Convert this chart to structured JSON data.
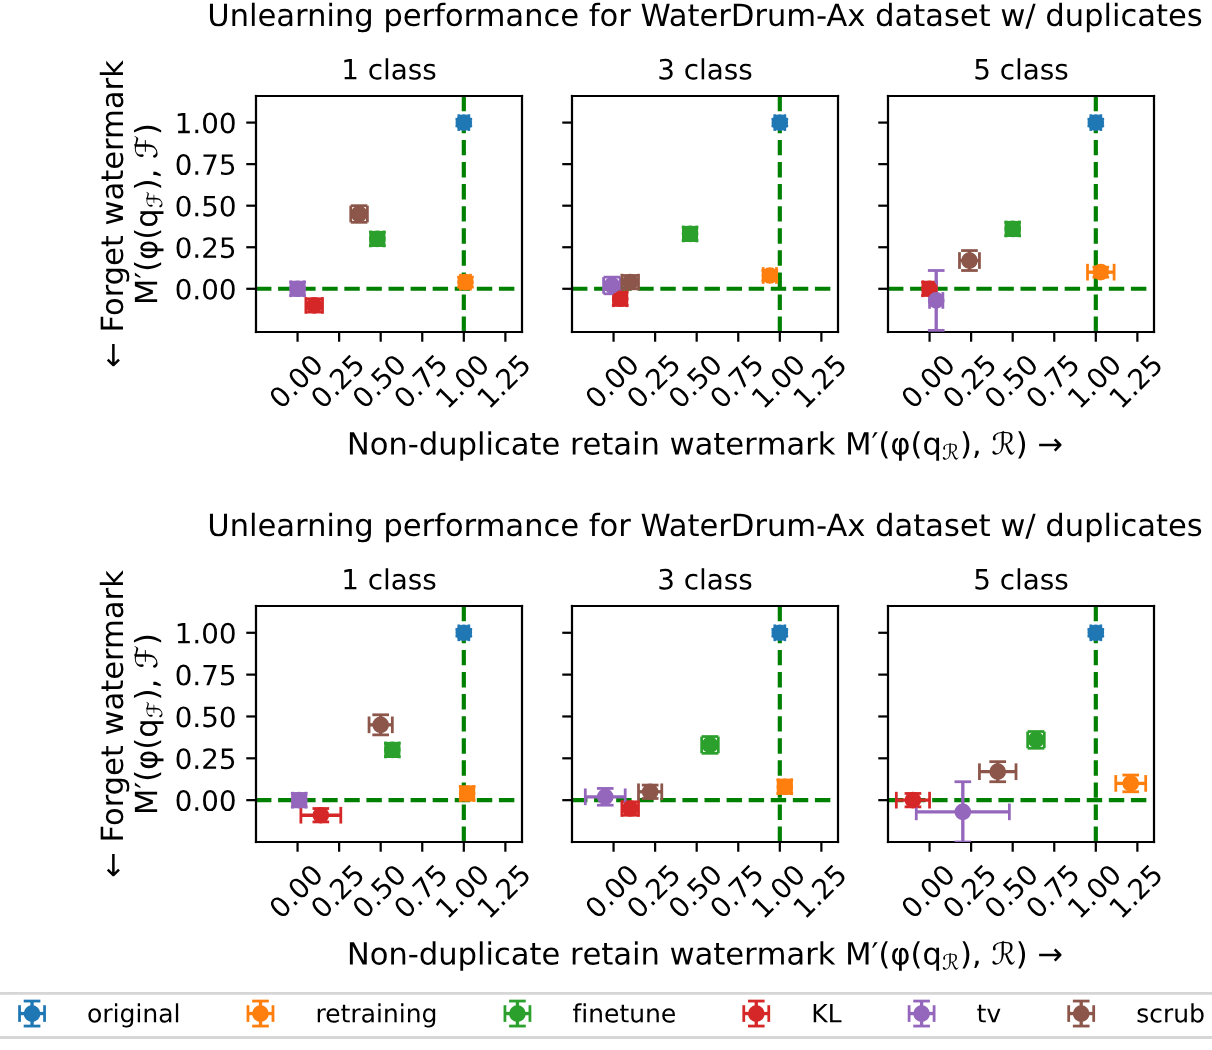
{
  "chart_data": [
    {
      "type": "scatter",
      "title": "1 class",
      "marker": "circle",
      "legend": "bottom",
      "ylabel": "← Forget watermark\nM′(φ(q$_{ℱ}$), ℱ)",
      "xlim": [
        -0.25,
        1.35
      ],
      "ylim": [
        -0.26,
        1.16
      ],
      "xticks": [
        {
          "value": 0,
          "label": "0.00"
        },
        {
          "value": 0.25,
          "label": "0.25"
        },
        {
          "value": 0.5,
          "label": "0.50"
        },
        {
          "value": 0.75,
          "label": "0.75"
        },
        {
          "value": 1,
          "label": "1.00"
        },
        {
          "value": 1.25,
          "label": "1.25"
        }
      ],
      "yticks": [
        {
          "value": 0,
          "label": "0.00"
        },
        {
          "value": 0.25,
          "label": "0.25"
        },
        {
          "value": 0.5,
          "label": "0.50"
        },
        {
          "value": 0.75,
          "label": "0.75"
        },
        {
          "value": 1,
          "label": "1.00"
        }
      ],
      "ref_lines": [
        {
          "axis": "x",
          "value": 1,
          "color": "#008000",
          "line_style": "dashed"
        },
        {
          "axis": "y",
          "value": 0,
          "color": "#008000",
          "line_style": "dashed"
        }
      ],
      "series": [
        {
          "name": "original",
          "color": "#1f77b4",
          "x": [
            1.0
          ],
          "values": [
            1.0
          ],
          "xerrors": [
            0.03
          ],
          "errors": [
            0.02
          ]
        },
        {
          "name": "retraining",
          "color": "#ff7f0e",
          "x": [
            1.01
          ],
          "values": [
            0.04
          ],
          "xerrors": [
            0.03
          ],
          "errors": [
            0.03
          ]
        },
        {
          "name": "finetune",
          "color": "#2ca02c",
          "x": [
            0.48
          ],
          "values": [
            0.3
          ],
          "xerrors": [
            0.04
          ],
          "errors": [
            0.04
          ]
        },
        {
          "name": "KL",
          "color": "#d62728",
          "x": [
            0.1
          ],
          "values": [
            -0.1
          ],
          "xerrors": [
            0.05
          ],
          "errors": [
            0.04
          ]
        },
        {
          "name": "tv",
          "color": "#9467bd",
          "x": [
            0.0
          ],
          "values": [
            0.0
          ],
          "xerrors": [
            0.04
          ],
          "errors": [
            0.04
          ]
        },
        {
          "name": "scrub",
          "color": "#8c564b",
          "x": [
            0.37
          ],
          "values": [
            0.45
          ],
          "xerrors": [
            0.05
          ],
          "errors": [
            0.05
          ]
        }
      ]
    },
    {
      "type": "scatter",
      "title": "3 class",
      "marker": "circle",
      "tick_labels": "x",
      "xlabel": "Non-duplicate retain watermark M′(φ(q$_{ℛ}$), ℛ) →",
      "annotations": [
        "Unlearning performance for WaterDrum-Ax dataset w/ duplicates"
      ],
      "xlim": [
        -0.25,
        1.35
      ],
      "ylim": [
        -0.26,
        1.16
      ],
      "xticks": [
        {
          "value": 0,
          "label": "0.00"
        },
        {
          "value": 0.25,
          "label": "0.25"
        },
        {
          "value": 0.5,
          "label": "0.50"
        },
        {
          "value": 0.75,
          "label": "0.75"
        },
        {
          "value": 1,
          "label": "1.00"
        },
        {
          "value": 1.25,
          "label": "1.25"
        }
      ],
      "yticks": [
        {
          "value": 0,
          "label": null
        },
        {
          "value": 0.25,
          "label": null
        },
        {
          "value": 0.5,
          "label": null
        },
        {
          "value": 0.75,
          "label": null
        },
        {
          "value": 1,
          "label": null
        }
      ],
      "ref_lines": [
        {
          "axis": "x",
          "value": 1,
          "color": "#008000",
          "line_style": "dashed"
        },
        {
          "axis": "y",
          "value": 0,
          "color": "#008000",
          "line_style": "dashed"
        }
      ],
      "series": [
        {
          "color": "#1f77b4",
          "x": [
            1.0
          ],
          "values": [
            1.0
          ],
          "xerrors": [
            0.03
          ],
          "errors": [
            0.02
          ]
        },
        {
          "color": "#ff7f0e",
          "x": [
            0.94
          ],
          "values": [
            0.08
          ],
          "xerrors": [
            0.04
          ],
          "errors": [
            0.03
          ]
        },
        {
          "color": "#2ca02c",
          "x": [
            0.46
          ],
          "values": [
            0.33
          ],
          "xerrors": [
            0.04
          ],
          "errors": [
            0.04
          ]
        },
        {
          "color": "#d62728",
          "x": [
            0.04
          ],
          "values": [
            -0.06
          ],
          "xerrors": [
            0.04
          ],
          "errors": [
            0.04
          ]
        },
        {
          "color": "#9467bd",
          "x": [
            -0.01
          ],
          "values": [
            0.02
          ],
          "xerrors": [
            0.05
          ],
          "errors": [
            0.05
          ]
        },
        {
          "color": "#8c564b",
          "x": [
            0.1
          ],
          "values": [
            0.04
          ],
          "xerrors": [
            0.05
          ],
          "errors": [
            0.04
          ]
        }
      ]
    },
    {
      "type": "scatter",
      "title": "5 class",
      "marker": "circle",
      "tick_labels": "x",
      "xlim": [
        -0.25,
        1.35
      ],
      "ylim": [
        -0.26,
        1.16
      ],
      "xticks": [
        {
          "value": 0,
          "label": "0.00"
        },
        {
          "value": 0.25,
          "label": "0.25"
        },
        {
          "value": 0.5,
          "label": "0.50"
        },
        {
          "value": 0.75,
          "label": "0.75"
        },
        {
          "value": 1,
          "label": "1.00"
        },
        {
          "value": 1.25,
          "label": "1.25"
        }
      ],
      "yticks": [
        {
          "value": 0,
          "label": null
        },
        {
          "value": 0.25,
          "label": null
        },
        {
          "value": 0.5,
          "label": null
        },
        {
          "value": 0.75,
          "label": null
        },
        {
          "value": 1,
          "label": null
        }
      ],
      "ref_lines": [
        {
          "axis": "x",
          "value": 1,
          "color": "#008000",
          "line_style": "dashed"
        },
        {
          "axis": "y",
          "value": 0,
          "color": "#008000",
          "line_style": "dashed"
        }
      ],
      "series": [
        {
          "color": "#1f77b4",
          "x": [
            1.0
          ],
          "values": [
            1.0
          ],
          "xerrors": [
            0.03
          ],
          "errors": [
            0.02
          ]
        },
        {
          "color": "#ff7f0e",
          "x": [
            1.03
          ],
          "values": [
            0.1
          ],
          "xerrors": [
            0.08
          ],
          "errors": [
            0.03
          ]
        },
        {
          "color": "#2ca02c",
          "x": [
            0.5
          ],
          "values": [
            0.36
          ],
          "xerrors": [
            0.04
          ],
          "errors": [
            0.04
          ]
        },
        {
          "color": "#d62728",
          "x": [
            0.0
          ],
          "values": [
            0.0
          ],
          "xerrors": [
            0.04
          ],
          "errors": [
            0.04
          ]
        },
        {
          "color": "#9467bd",
          "x": [
            0.04
          ],
          "values": [
            -0.07
          ],
          "xerrors": [
            0.04
          ],
          "errors": [
            0.18
          ]
        },
        {
          "color": "#8c564b",
          "x": [
            0.24
          ],
          "values": [
            0.17
          ],
          "xerrors": [
            0.06
          ],
          "errors": [
            0.06
          ]
        }
      ]
    },
    {
      "type": "scatter",
      "title": "1 class",
      "marker": "circle",
      "ylabel": "← Forget watermark\nM′(φ(q$_{ℱ}$), ℱ)",
      "xlim": [
        -0.25,
        1.35
      ],
      "ylim": [
        -0.25,
        1.16
      ],
      "xticks": [
        {
          "value": 0,
          "label": "0.00"
        },
        {
          "value": 0.25,
          "label": "0.25"
        },
        {
          "value": 0.5,
          "label": "0.50"
        },
        {
          "value": 0.75,
          "label": "0.75"
        },
        {
          "value": 1,
          "label": "1.00"
        },
        {
          "value": 1.25,
          "label": "1.25"
        }
      ],
      "yticks": [
        {
          "value": 0,
          "label": "0.00"
        },
        {
          "value": 0.25,
          "label": "0.25"
        },
        {
          "value": 0.5,
          "label": "0.50"
        },
        {
          "value": 0.75,
          "label": "0.75"
        },
        {
          "value": 1,
          "label": "1.00"
        }
      ],
      "ref_lines": [
        {
          "axis": "x",
          "value": 1,
          "color": "#008000",
          "line_style": "dashed"
        },
        {
          "axis": "y",
          "value": 0,
          "color": "#008000",
          "line_style": "dashed"
        }
      ],
      "series": [
        {
          "color": "#1f77b4",
          "x": [
            1.0
          ],
          "values": [
            1.0
          ],
          "xerrors": [
            0.03
          ],
          "errors": [
            0.02
          ]
        },
        {
          "color": "#ff7f0e",
          "x": [
            1.02
          ],
          "values": [
            0.04
          ],
          "xerrors": [
            0.04
          ],
          "errors": [
            0.04
          ]
        },
        {
          "color": "#2ca02c",
          "x": [
            0.57
          ],
          "values": [
            0.3
          ],
          "xerrors": [
            0.04
          ],
          "errors": [
            0.04
          ]
        },
        {
          "color": "#d62728",
          "x": [
            0.14
          ],
          "values": [
            -0.09
          ],
          "xerrors": [
            0.12
          ],
          "errors": [
            0.04
          ]
        },
        {
          "color": "#9467bd",
          "x": [
            0.01
          ],
          "values": [
            0.0
          ],
          "xerrors": [
            0.04
          ],
          "errors": [
            0.04
          ]
        },
        {
          "color": "#8c564b",
          "x": [
            0.5
          ],
          "values": [
            0.45
          ],
          "xerrors": [
            0.07
          ],
          "errors": [
            0.06
          ]
        }
      ]
    },
    {
      "type": "scatter",
      "title": "3 class",
      "marker": "circle",
      "tick_labels": "x",
      "xlabel": "Non-duplicate retain watermark M′(φ(q$_{ℛ}$), ℛ) →",
      "annotations": [
        "Unlearning performance for WaterDrum-Ax dataset w/ duplicates"
      ],
      "xlim": [
        -0.25,
        1.35
      ],
      "ylim": [
        -0.25,
        1.16
      ],
      "xticks": [
        {
          "value": 0,
          "label": "0.00"
        },
        {
          "value": 0.25,
          "label": "0.25"
        },
        {
          "value": 0.5,
          "label": "0.50"
        },
        {
          "value": 0.75,
          "label": "0.75"
        },
        {
          "value": 1,
          "label": "1.00"
        },
        {
          "value": 1.25,
          "label": "1.25"
        }
      ],
      "yticks": [
        {
          "value": 0,
          "label": null
        },
        {
          "value": 0.25,
          "label": null
        },
        {
          "value": 0.5,
          "label": null
        },
        {
          "value": 0.75,
          "label": null
        },
        {
          "value": 1,
          "label": null
        }
      ],
      "ref_lines": [
        {
          "axis": "x",
          "value": 1,
          "color": "#008000",
          "line_style": "dashed"
        },
        {
          "axis": "y",
          "value": 0,
          "color": "#008000",
          "line_style": "dashed"
        }
      ],
      "series": [
        {
          "color": "#1f77b4",
          "x": [
            1.0
          ],
          "values": [
            1.0
          ],
          "xerrors": [
            0.03
          ],
          "errors": [
            0.02
          ]
        },
        {
          "color": "#ff7f0e",
          "x": [
            1.03
          ],
          "values": [
            0.08
          ],
          "xerrors": [
            0.04
          ],
          "errors": [
            0.04
          ]
        },
        {
          "color": "#2ca02c",
          "x": [
            0.58
          ],
          "values": [
            0.33
          ],
          "xerrors": [
            0.05
          ],
          "errors": [
            0.05
          ]
        },
        {
          "color": "#d62728",
          "x": [
            0.1
          ],
          "values": [
            -0.05
          ],
          "xerrors": [
            0.05
          ],
          "errors": [
            0.04
          ]
        },
        {
          "color": "#9467bd",
          "x": [
            -0.05
          ],
          "values": [
            0.02
          ],
          "xerrors": [
            0.12
          ],
          "errors": [
            0.05
          ]
        },
        {
          "color": "#8c564b",
          "x": [
            0.22
          ],
          "values": [
            0.05
          ],
          "xerrors": [
            0.07
          ],
          "errors": [
            0.04
          ]
        }
      ]
    },
    {
      "type": "scatter",
      "title": "5 class",
      "marker": "circle",
      "tick_labels": "x",
      "xlim": [
        -0.25,
        1.35
      ],
      "ylim": [
        -0.25,
        1.16
      ],
      "xticks": [
        {
          "value": 0,
          "label": "0.00"
        },
        {
          "value": 0.25,
          "label": "0.25"
        },
        {
          "value": 0.5,
          "label": "0.50"
        },
        {
          "value": 0.75,
          "label": "0.75"
        },
        {
          "value": 1,
          "label": "1.00"
        },
        {
          "value": 1.25,
          "label": "1.25"
        }
      ],
      "yticks": [
        {
          "value": 0,
          "label": null
        },
        {
          "value": 0.25,
          "label": null
        },
        {
          "value": 0.5,
          "label": null
        },
        {
          "value": 0.75,
          "label": null
        },
        {
          "value": 1,
          "label": null
        }
      ],
      "ref_lines": [
        {
          "axis": "x",
          "value": 1,
          "color": "#008000",
          "line_style": "dashed"
        },
        {
          "axis": "y",
          "value": 0,
          "color": "#008000",
          "line_style": "dashed"
        }
      ],
      "series": [
        {
          "color": "#1f77b4",
          "x": [
            1.0
          ],
          "values": [
            1.0
          ],
          "xerrors": [
            0.03
          ],
          "errors": [
            0.02
          ]
        },
        {
          "color": "#ff7f0e",
          "x": [
            1.21
          ],
          "values": [
            0.1
          ],
          "xerrors": [
            0.09
          ],
          "errors": [
            0.05
          ]
        },
        {
          "color": "#2ca02c",
          "x": [
            0.64
          ],
          "values": [
            0.36
          ],
          "xerrors": [
            0.05
          ],
          "errors": [
            0.05
          ]
        },
        {
          "color": "#d62728",
          "x": [
            -0.1
          ],
          "values": [
            0.0
          ],
          "xerrors": [
            0.1
          ],
          "errors": [
            0.04
          ]
        },
        {
          "color": "#9467bd",
          "x": [
            0.2
          ],
          "values": [
            -0.07
          ],
          "xerrors": [
            0.28
          ],
          "errors": [
            0.18
          ]
        },
        {
          "color": "#8c564b",
          "x": [
            0.41
          ],
          "values": [
            0.17
          ],
          "xerrors": [
            0.11
          ],
          "errors": [
            0.06
          ]
        }
      ]
    }
  ]
}
